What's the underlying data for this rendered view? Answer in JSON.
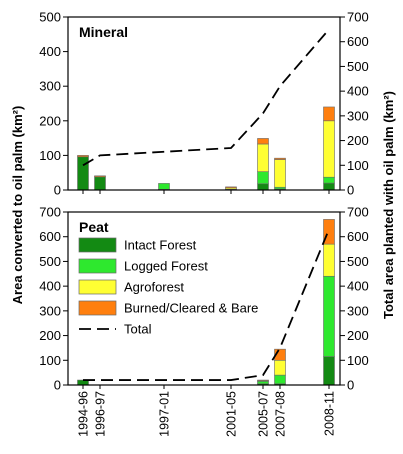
{
  "chart_data": {
    "type": "bar",
    "x_tick_labels": [
      "1994-96",
      "1996-97",
      "1997-01",
      "2001-05",
      "2005-07",
      "2007-08",
      "2008-11"
    ],
    "left_ylabel": "Area converted to oil palm (km²)",
    "right_ylabel": "Total area planted with oil palm (km²)",
    "legend": {
      "position": "center-left",
      "entries": [
        {
          "label": "Intact Forest",
          "color": "#138a13",
          "kind": "box"
        },
        {
          "label": "Logged Forest",
          "color": "#2ee82e",
          "kind": "box"
        },
        {
          "label": "Agroforest",
          "color": "#ffff33",
          "kind": "box"
        },
        {
          "label": "Burned/Cleared & Bare",
          "color": "#ff7f0e",
          "kind": "box"
        },
        {
          "label": "Total",
          "color": "#000000",
          "kind": "dash"
        }
      ]
    },
    "panels": [
      {
        "title": "Mineral",
        "left_ylim": [
          0,
          500
        ],
        "left_ticks": [
          0,
          100,
          200,
          300,
          400,
          500
        ],
        "right_ylim": [
          0,
          700
        ],
        "right_ticks": [
          0,
          100,
          200,
          300,
          400,
          500,
          600,
          700
        ],
        "bars": [
          {
            "period": "1994-96",
            "values": {
              "Intact Forest": 96,
              "Logged Forest": 0,
              "Agroforest": 0,
              "Burned/Cleared & Bare": 4
            }
          },
          {
            "period": "1996-97",
            "values": {
              "Intact Forest": 38,
              "Logged Forest": 0,
              "Agroforest": 0,
              "Burned/Cleared & Bare": 3
            }
          },
          {
            "period": "1997-01",
            "values": {
              "Intact Forest": 2,
              "Logged Forest": 17,
              "Agroforest": 0,
              "Burned/Cleared & Bare": 0
            }
          },
          {
            "period": "2001-05",
            "values": {
              "Intact Forest": 0,
              "Logged Forest": 2,
              "Agroforest": 4,
              "Burned/Cleared & Bare": 3
            }
          },
          {
            "period": "2005-07",
            "values": {
              "Intact Forest": 18,
              "Logged Forest": 35,
              "Agroforest": 80,
              "Burned/Cleared & Bare": 16
            }
          },
          {
            "period": "2007-08",
            "values": {
              "Intact Forest": 3,
              "Logged Forest": 5,
              "Agroforest": 80,
              "Burned/Cleared & Bare": 4
            }
          },
          {
            "period": "2008-11",
            "values": {
              "Intact Forest": 20,
              "Logged Forest": 17,
              "Agroforest": 163,
              "Burned/Cleared & Bare": 40
            }
          }
        ],
        "total_line": {
          "x": [
            "1994-96",
            "1996-97",
            "2001-05",
            "2005-07",
            "2007-08",
            "2008-11"
          ],
          "y": [
            100,
            140,
            170,
            310,
            420,
            650
          ]
        }
      },
      {
        "title": "Peat",
        "left_ylim": [
          0,
          700
        ],
        "left_ticks": [
          0,
          100,
          200,
          300,
          400,
          500,
          600,
          700
        ],
        "right_ylim": [
          0,
          700
        ],
        "right_ticks": [
          0,
          100,
          200,
          300,
          400,
          500,
          600,
          700
        ],
        "bars": [
          {
            "period": "1994-96",
            "values": {
              "Intact Forest": 20,
              "Logged Forest": 0,
              "Agroforest": 0,
              "Burned/Cleared & Bare": 0
            }
          },
          {
            "period": "2005-07",
            "values": {
              "Intact Forest": 5,
              "Logged Forest": 10,
              "Agroforest": 2,
              "Burned/Cleared & Bare": 3
            }
          },
          {
            "period": "2007-08",
            "values": {
              "Intact Forest": 5,
              "Logged Forest": 35,
              "Agroforest": 60,
              "Burned/Cleared & Bare": 45
            }
          },
          {
            "period": "2008-11",
            "values": {
              "Intact Forest": 115,
              "Logged Forest": 325,
              "Agroforest": 130,
              "Burned/Cleared & Bare": 100
            }
          }
        ],
        "total_line": {
          "x": [
            "1994-96",
            "2001-05",
            "2005-07",
            "2007-08",
            "2008-11"
          ],
          "y": [
            20,
            20,
            40,
            150,
            630
          ]
        }
      }
    ]
  }
}
